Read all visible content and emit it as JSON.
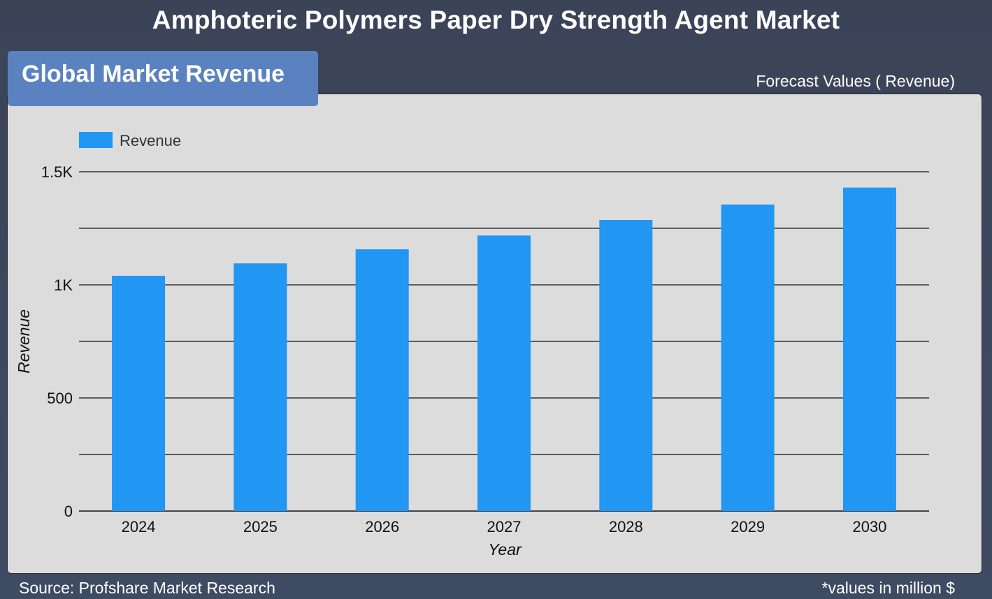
{
  "header": {
    "title": "Amphoteric Polymers Paper Dry Strength Agent Market",
    "badge": "Global Market Revenue",
    "forecast_label": "Forecast Values ( Revenue)"
  },
  "footer": {
    "source": "Source: Profshare Market Research",
    "units_note": "*values in million $"
  },
  "colors": {
    "bar": "#2196f3",
    "panel": "#dcdcdc",
    "badge": "#5b82c0"
  },
  "chart_data": {
    "type": "bar",
    "categories": [
      "2024",
      "2025",
      "2026",
      "2027",
      "2028",
      "2029",
      "2030"
    ],
    "series": [
      {
        "name": "Revenue",
        "values": [
          1040,
          1095,
          1157,
          1218,
          1287,
          1355,
          1430
        ]
      }
    ],
    "xlabel": "Year",
    "ylabel": "Revenue",
    "ylim": [
      0,
      1500
    ],
    "yticks": [
      0,
      500,
      1000,
      1500
    ],
    "ytick_labels": [
      "0",
      "500",
      "1K",
      "1.5K"
    ],
    "grid": true,
    "legend": "top-left"
  }
}
